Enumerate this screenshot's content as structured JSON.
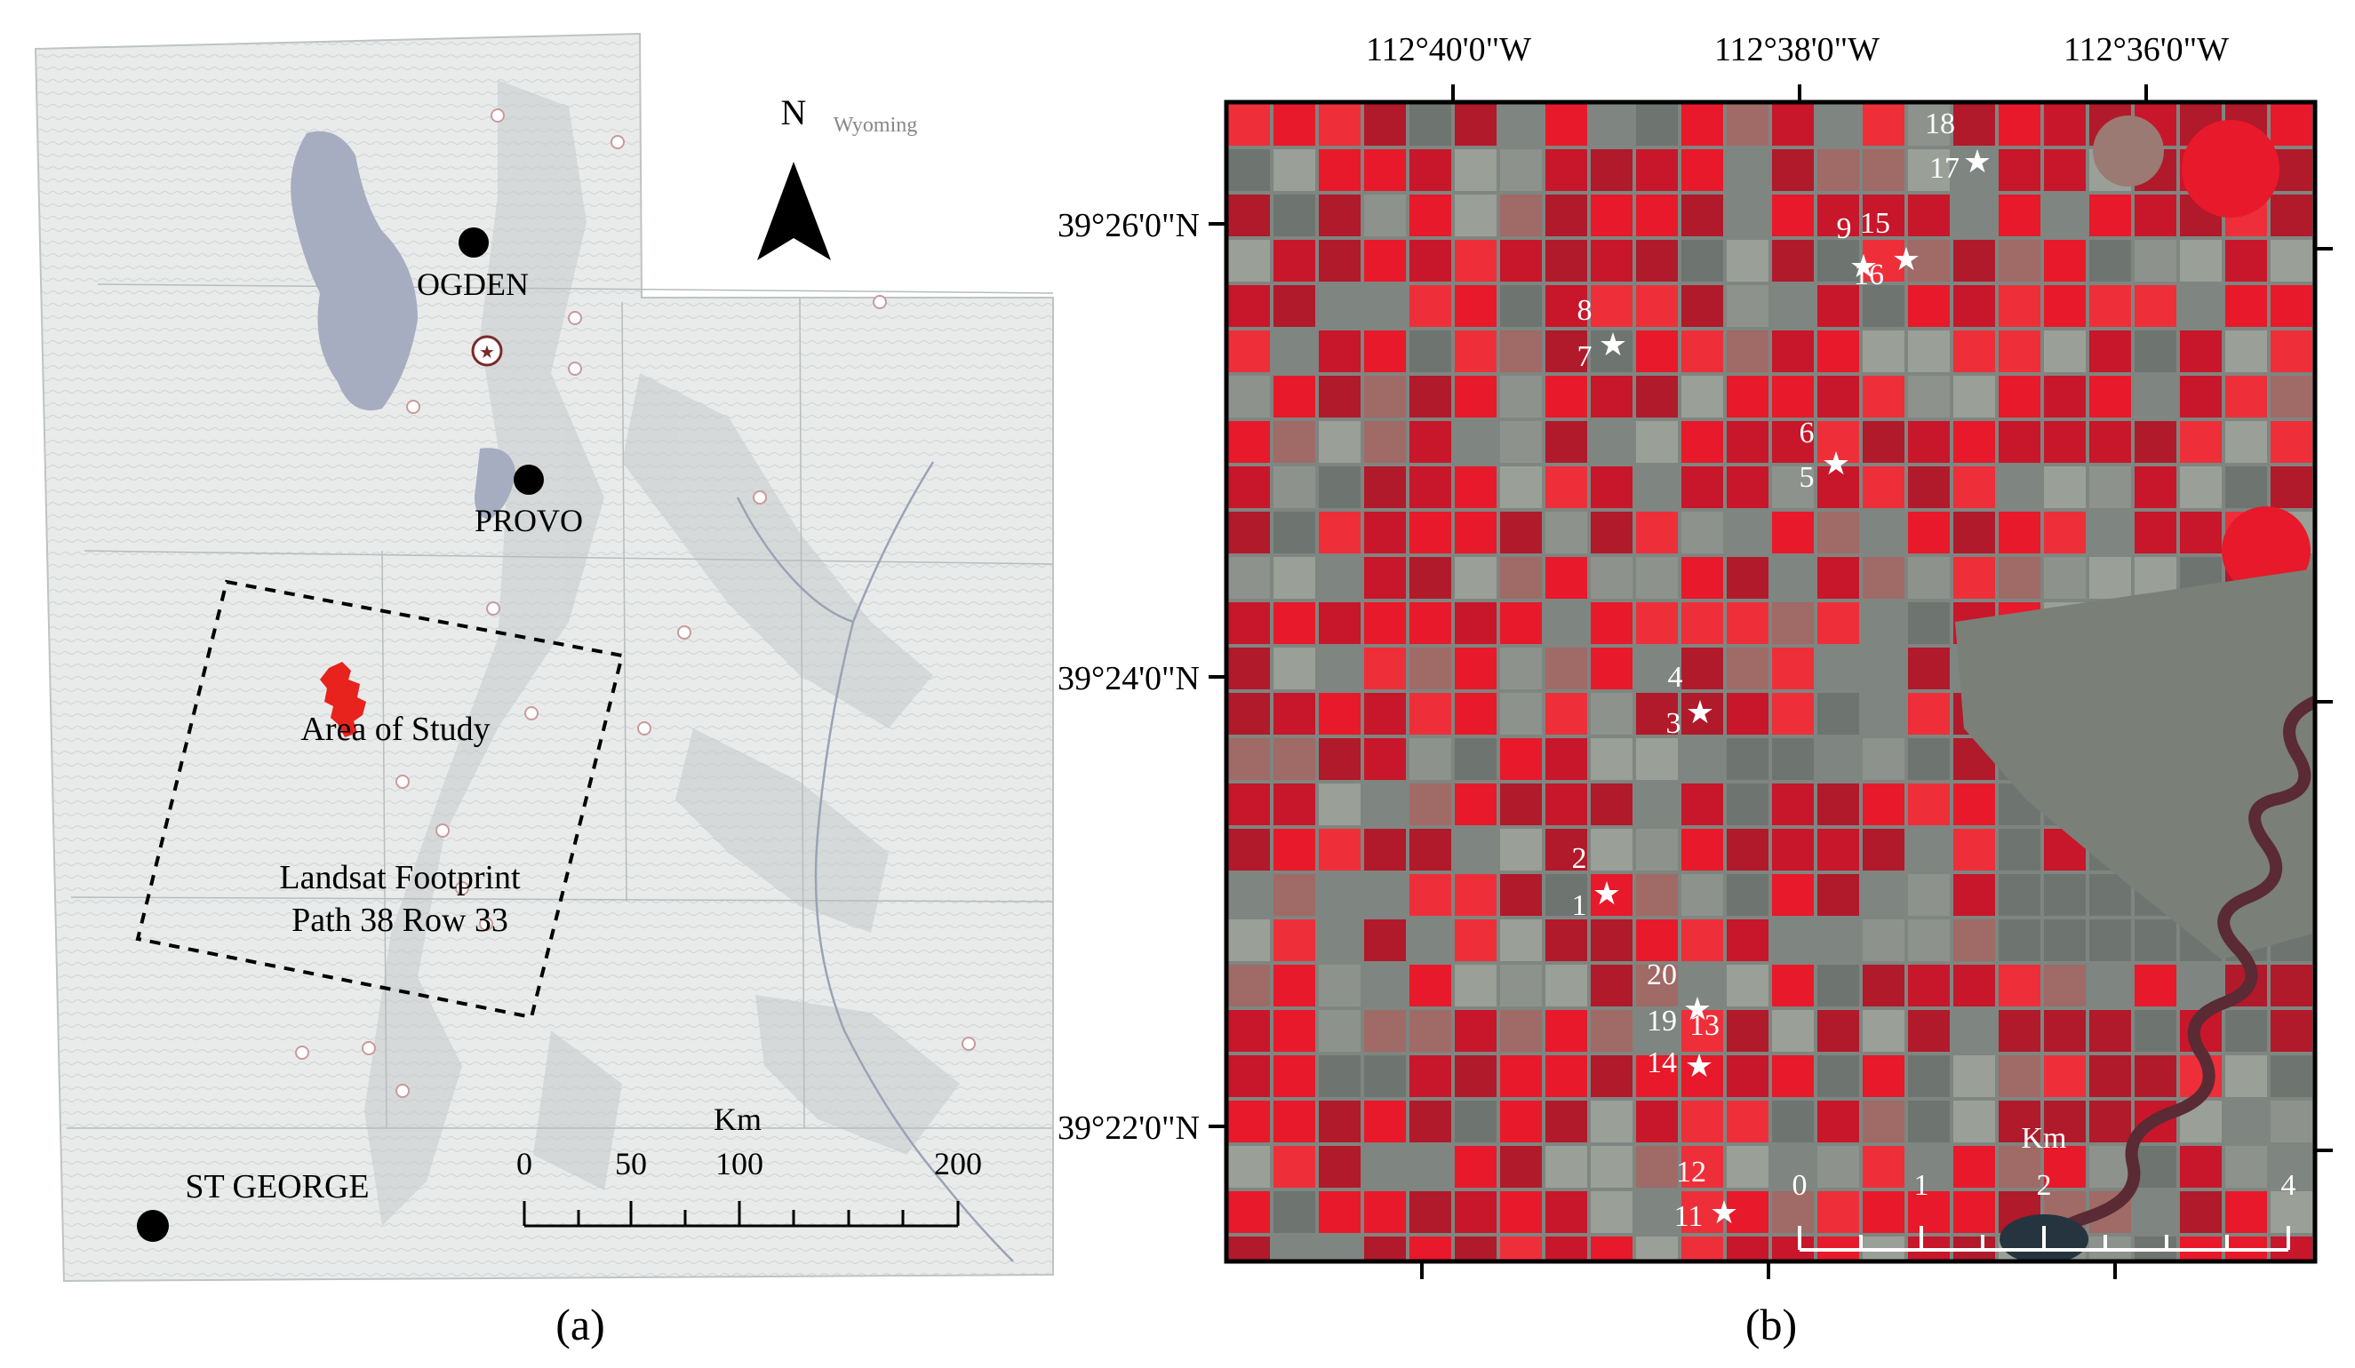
{
  "panel_a": {
    "state_label": "Wyoming",
    "north_label": "N",
    "cities": [
      {
        "name": "OGDEN"
      },
      {
        "name": "PROVO"
      },
      {
        "name": "ST GEORGE"
      }
    ],
    "study_area_label": "Area of Study",
    "footprint_label_line1": "Landsat Footprint",
    "footprint_label_line2": "Path 38 Row 33",
    "scale": {
      "unit": "Km",
      "ticks": [
        "0",
        "50",
        "100",
        "200"
      ]
    },
    "caption": "(a)",
    "colors": {
      "study_area": "#e8221c",
      "water": "#a6adc0",
      "land": "#e8eaea"
    }
  },
  "panel_b": {
    "lon_labels": [
      "112°40'0\"W",
      "112°38'0\"W",
      "112°36'0\"W"
    ],
    "lat_labels": [
      "39°26'0\"N",
      "39°24'0\"N",
      "39°22'0\"N"
    ],
    "site_labels": [
      {
        "number": "18"
      },
      {
        "number": "17"
      },
      {
        "number": "9"
      },
      {
        "number": "15"
      },
      {
        "number": "16"
      },
      {
        "number": "8"
      },
      {
        "number": "7"
      },
      {
        "number": "6"
      },
      {
        "number": "5"
      },
      {
        "number": "4"
      },
      {
        "number": "3"
      },
      {
        "number": "2"
      },
      {
        "number": "1"
      },
      {
        "number": "20"
      },
      {
        "number": "19"
      },
      {
        "number": "13"
      },
      {
        "number": "14"
      },
      {
        "number": "12"
      },
      {
        "number": "11"
      }
    ],
    "scale": {
      "unit": "Km",
      "ticks": [
        "0",
        "1",
        "2",
        "4"
      ]
    },
    "caption": "(b)",
    "colors": {
      "field_red": "#e8192a",
      "field_gray": "#7f8580",
      "river": "#5a2a35"
    }
  }
}
